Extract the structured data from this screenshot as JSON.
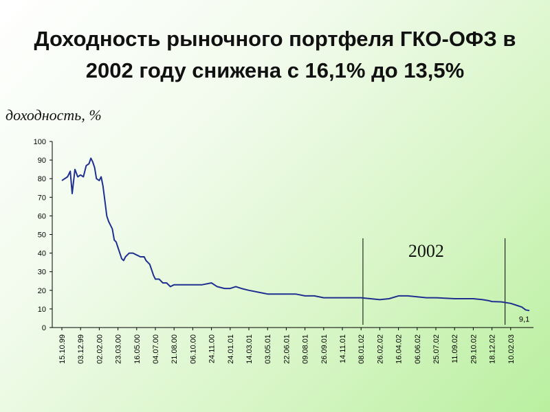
{
  "title": {
    "line1": "Доходность рыночного портфеля ГКО-ОФЗ в",
    "line2": "2002 году снижена с 16,1% до 13,5%"
  },
  "colors": {
    "line": "#1f2f8f",
    "axis": "#000000",
    "marker": "#000000"
  },
  "chart_data": {
    "type": "line",
    "title": "Доходность рыночного портфеля ГКО-ОФЗ в 2002 году снижена с 16,1% до 13,5%",
    "ylabel": "доходность, %",
    "xlabel": "",
    "ylim": [
      0,
      100
    ],
    "yticks": [
      0,
      10,
      20,
      30,
      40,
      50,
      60,
      70,
      80,
      90,
      100
    ],
    "grid": false,
    "xtick_labels": [
      "15.10.99",
      "03.12.99",
      "02.02.00",
      "23.03.00",
      "16.05.00",
      "04.07.00",
      "21.08.00",
      "06.10.00",
      "24.11.00",
      "24.01.01",
      "14.03.01",
      "03.05.01",
      "22.06.01",
      "09.08.01",
      "26.09.01",
      "14.11.01",
      "08.01.02",
      "26.02.02",
      "16.04.02",
      "06.06.02",
      "25.07.02",
      "11.09.02",
      "29.10.02",
      "18.12.02",
      "10.02.03"
    ],
    "series": [
      {
        "points": [
          [
            0,
            79
          ],
          [
            0.3,
            81
          ],
          [
            0.45,
            84
          ],
          [
            0.55,
            72
          ],
          [
            0.7,
            85
          ],
          [
            0.85,
            81
          ],
          [
            1.0,
            82
          ],
          [
            1.15,
            81
          ],
          [
            1.3,
            87
          ],
          [
            1.45,
            88
          ],
          [
            1.55,
            91
          ],
          [
            1.65,
            89
          ],
          [
            1.75,
            86
          ],
          [
            1.85,
            80
          ],
          [
            2.0,
            79
          ],
          [
            2.1,
            81
          ],
          [
            2.2,
            76
          ],
          [
            2.3,
            68
          ],
          [
            2.4,
            60
          ],
          [
            2.5,
            57
          ],
          [
            2.6,
            55
          ],
          [
            2.7,
            53
          ],
          [
            2.8,
            47
          ],
          [
            2.9,
            46
          ],
          [
            3.0,
            43
          ],
          [
            3.1,
            40
          ],
          [
            3.2,
            37
          ],
          [
            3.3,
            36
          ],
          [
            3.4,
            38
          ],
          [
            3.6,
            40
          ],
          [
            3.8,
            40
          ],
          [
            4.0,
            39
          ],
          [
            4.2,
            38
          ],
          [
            4.4,
            38
          ],
          [
            4.5,
            36
          ],
          [
            4.7,
            34
          ],
          [
            4.8,
            31
          ],
          [
            4.9,
            28
          ],
          [
            5.0,
            26
          ],
          [
            5.2,
            26
          ],
          [
            5.4,
            24
          ],
          [
            5.6,
            24
          ],
          [
            5.8,
            22
          ],
          [
            6.0,
            23
          ],
          [
            6.5,
            23
          ],
          [
            7.0,
            23
          ],
          [
            7.5,
            23
          ],
          [
            8.0,
            24
          ],
          [
            8.3,
            22
          ],
          [
            8.7,
            21
          ],
          [
            9.0,
            21
          ],
          [
            9.3,
            22
          ],
          [
            9.6,
            21
          ],
          [
            10.0,
            20
          ],
          [
            10.5,
            19
          ],
          [
            11.0,
            18
          ],
          [
            11.5,
            18
          ],
          [
            12.0,
            18
          ],
          [
            12.5,
            18
          ],
          [
            13.0,
            17
          ],
          [
            13.5,
            17
          ],
          [
            14.0,
            16
          ],
          [
            15.0,
            16
          ],
          [
            16.0,
            16
          ],
          [
            16.5,
            15.5
          ],
          [
            17.0,
            15
          ],
          [
            17.5,
            15.5
          ],
          [
            18.0,
            17
          ],
          [
            18.5,
            17
          ],
          [
            19.0,
            16.5
          ],
          [
            19.5,
            16
          ],
          [
            20.0,
            16
          ],
          [
            21.0,
            15.5
          ],
          [
            22.0,
            15.5
          ],
          [
            22.5,
            15
          ],
          [
            22.8,
            14.5
          ],
          [
            23.0,
            14
          ],
          [
            23.5,
            13.8
          ],
          [
            24.0,
            13
          ],
          [
            24.3,
            12
          ],
          [
            24.6,
            11
          ],
          [
            24.8,
            9.5
          ],
          [
            25.0,
            9.1
          ]
        ]
      }
    ],
    "annotations": [
      {
        "text": "2002",
        "at_index": 16.1
      },
      {
        "text": "9,1",
        "at_index": 24.8,
        "value": 9.1
      }
    ],
    "markers_at_index": [
      16.1,
      23.7
    ]
  }
}
